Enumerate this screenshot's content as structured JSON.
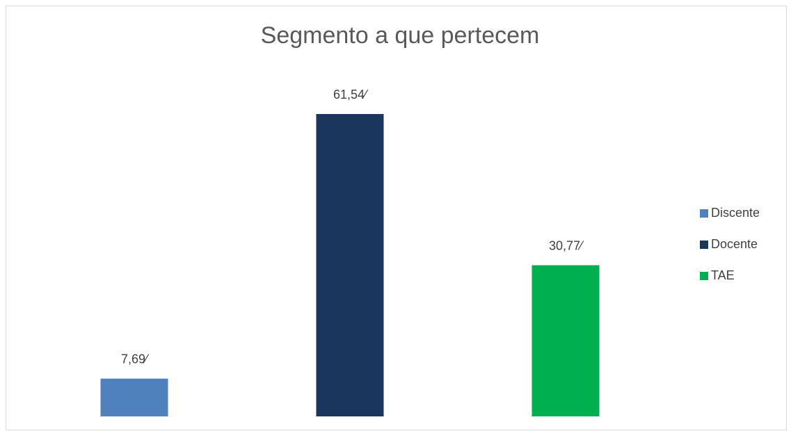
{
  "chart_data": {
    "type": "bar",
    "title": "Segmento a que pertecem",
    "series": [
      {
        "name": "Discente",
        "color": "#4f81bd",
        "values": [
          7.69
        ],
        "value_labels": [
          "7,69⁄"
        ]
      },
      {
        "name": "Docente",
        "color": "#1a365d",
        "values": [
          61.54
        ],
        "value_labels": [
          "61,54⁄"
        ]
      },
      {
        "name": "TAE",
        "color": "#00b050",
        "values": [
          30.77
        ],
        "value_labels": [
          "30,77⁄"
        ]
      }
    ],
    "legend": "right"
  }
}
